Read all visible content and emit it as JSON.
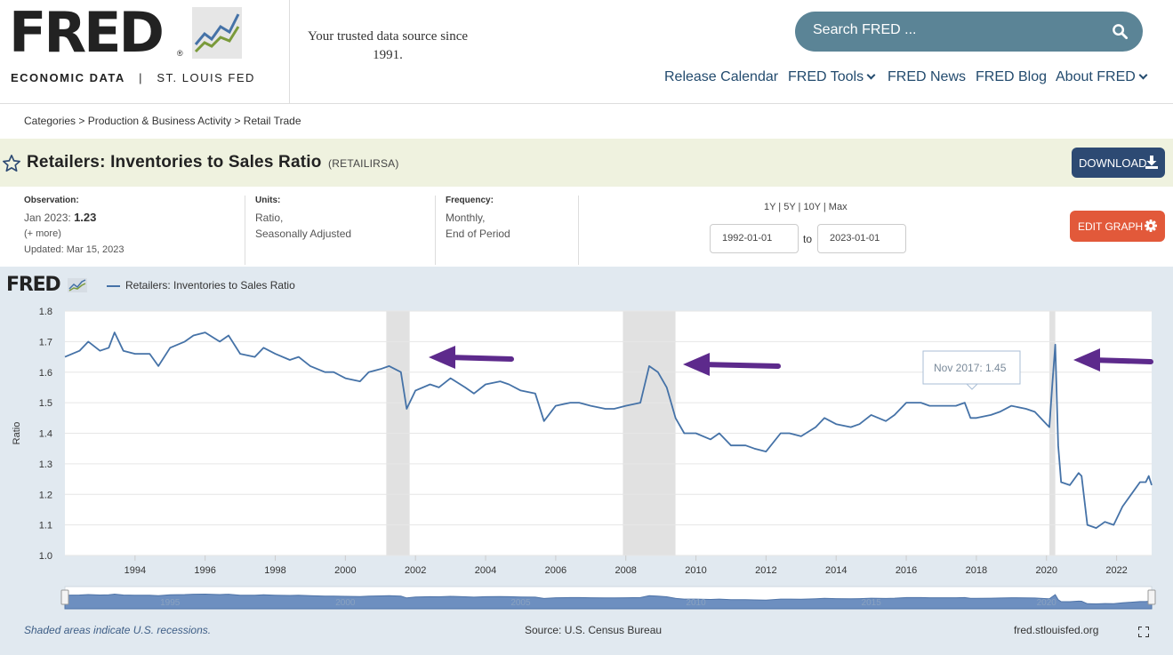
{
  "header": {
    "logo_text": "FRED",
    "logo_reg": "®",
    "logo_sub_bold": "ECONOMIC DATA",
    "logo_sub_sep": "|",
    "logo_sub": "ST. LOUIS FED",
    "tagline": "Your trusted data source since 1991.",
    "search_placeholder": "Search FRED ...",
    "nav": [
      "Release Calendar",
      "FRED Tools",
      "FRED News",
      "FRED Blog",
      "About FRED"
    ]
  },
  "breadcrumb": "Categories > Production & Business Activity > Retail Trade",
  "series": {
    "title": "Retailers: Inventories to Sales Ratio",
    "id": "(RETAILIRSA)",
    "download_label": "DOWNLOAD"
  },
  "meta": {
    "observation_label": "Observation:",
    "observation_date": "Jan 2023:",
    "observation_value": "1.23",
    "more": "(+ more)",
    "updated": "Updated: Mar 15, 2023",
    "units_label": "Units:",
    "units_1": "Ratio,",
    "units_2": "Seasonally Adjusted",
    "frequency_label": "Frequency:",
    "frequency_1": "Monthly,",
    "frequency_2": "End of Period",
    "range_links": "1Y | 5Y | 10Y | Max",
    "date_from": "1992-01-01",
    "date_to_label": "to",
    "date_to": "2023-01-01",
    "edit_label": "EDIT GRAPH"
  },
  "graph": {
    "logo": "FRED",
    "legend": "Retailers: Inventories to Sales Ratio",
    "tooltip_label": "Nov 2017:",
    "tooltip_value": "1.45",
    "footnote_recessions": "Shaded areas indicate U.S. recessions.",
    "source": "Source: U.S. Census Bureau",
    "site": "fred.stlouisfed.org"
  },
  "colors": {
    "line": "#4572a7",
    "recession": "#e1e1e1",
    "arrow": "#5d2a8c",
    "download_button": "#2d4a73",
    "edit_button": "#e2593a",
    "search_bg": "#5b8496"
  },
  "chart_data": {
    "type": "line",
    "title": "",
    "xlabel": "",
    "ylabel": "Ratio",
    "ylim": [
      1.0,
      1.8
    ],
    "xlim": [
      "1992-01",
      "2023-01"
    ],
    "y_ticks": [
      "1.0",
      "1.1",
      "1.2",
      "1.3",
      "1.4",
      "1.5",
      "1.6",
      "1.7",
      "1.8"
    ],
    "x_ticks": [
      "1994",
      "1996",
      "1998",
      "2000",
      "2002",
      "2004",
      "2006",
      "2008",
      "2010",
      "2012",
      "2014",
      "2016",
      "2018",
      "2020",
      "2022"
    ],
    "navigator_labels": [
      "1995",
      "2000",
      "2005",
      "2010",
      "2015",
      "2020"
    ],
    "recessions": [
      [
        "2001-03",
        "2001-11"
      ],
      [
        "2007-12",
        "2009-06"
      ],
      [
        "2020-02",
        "2020-04"
      ]
    ],
    "series": [
      {
        "name": "Retailers: Inventories to Sales Ratio",
        "points": [
          [
            "1992-01",
            1.65
          ],
          [
            "1992-06",
            1.67
          ],
          [
            "1992-09",
            1.7
          ],
          [
            "1993-01",
            1.67
          ],
          [
            "1993-04",
            1.68
          ],
          [
            "1993-06",
            1.73
          ],
          [
            "1993-09",
            1.67
          ],
          [
            "1994-01",
            1.66
          ],
          [
            "1994-06",
            1.66
          ],
          [
            "1994-09",
            1.62
          ],
          [
            "1995-01",
            1.68
          ],
          [
            "1995-06",
            1.7
          ],
          [
            "1995-09",
            1.72
          ],
          [
            "1996-01",
            1.73
          ],
          [
            "1996-06",
            1.7
          ],
          [
            "1996-09",
            1.72
          ],
          [
            "1997-01",
            1.66
          ],
          [
            "1997-06",
            1.65
          ],
          [
            "1997-09",
            1.68
          ],
          [
            "1998-01",
            1.66
          ],
          [
            "1998-06",
            1.64
          ],
          [
            "1998-09",
            1.65
          ],
          [
            "1999-01",
            1.62
          ],
          [
            "1999-06",
            1.6
          ],
          [
            "1999-09",
            1.6
          ],
          [
            "2000-01",
            1.58
          ],
          [
            "2000-06",
            1.57
          ],
          [
            "2000-09",
            1.6
          ],
          [
            "2001-01",
            1.61
          ],
          [
            "2001-04",
            1.62
          ],
          [
            "2001-08",
            1.6
          ],
          [
            "2001-10",
            1.48
          ],
          [
            "2002-01",
            1.54
          ],
          [
            "2002-06",
            1.56
          ],
          [
            "2002-09",
            1.55
          ],
          [
            "2003-01",
            1.58
          ],
          [
            "2003-06",
            1.55
          ],
          [
            "2003-09",
            1.53
          ],
          [
            "2004-01",
            1.56
          ],
          [
            "2004-06",
            1.57
          ],
          [
            "2004-09",
            1.56
          ],
          [
            "2005-01",
            1.54
          ],
          [
            "2005-06",
            1.53
          ],
          [
            "2005-09",
            1.44
          ],
          [
            "2006-01",
            1.49
          ],
          [
            "2006-06",
            1.5
          ],
          [
            "2006-09",
            1.5
          ],
          [
            "2007-01",
            1.49
          ],
          [
            "2007-06",
            1.48
          ],
          [
            "2007-09",
            1.48
          ],
          [
            "2008-01",
            1.49
          ],
          [
            "2008-06",
            1.5
          ],
          [
            "2008-09",
            1.62
          ],
          [
            "2008-12",
            1.6
          ],
          [
            "2009-03",
            1.55
          ],
          [
            "2009-06",
            1.45
          ],
          [
            "2009-09",
            1.4
          ],
          [
            "2010-01",
            1.4
          ],
          [
            "2010-06",
            1.38
          ],
          [
            "2010-09",
            1.4
          ],
          [
            "2011-01",
            1.36
          ],
          [
            "2011-06",
            1.36
          ],
          [
            "2011-09",
            1.35
          ],
          [
            "2012-01",
            1.34
          ],
          [
            "2012-06",
            1.4
          ],
          [
            "2012-09",
            1.4
          ],
          [
            "2013-01",
            1.39
          ],
          [
            "2013-06",
            1.42
          ],
          [
            "2013-09",
            1.45
          ],
          [
            "2014-01",
            1.43
          ],
          [
            "2014-06",
            1.42
          ],
          [
            "2014-09",
            1.43
          ],
          [
            "2015-01",
            1.46
          ],
          [
            "2015-06",
            1.44
          ],
          [
            "2015-09",
            1.46
          ],
          [
            "2016-01",
            1.5
          ],
          [
            "2016-06",
            1.5
          ],
          [
            "2016-09",
            1.49
          ],
          [
            "2017-01",
            1.49
          ],
          [
            "2017-06",
            1.49
          ],
          [
            "2017-09",
            1.5
          ],
          [
            "2017-11",
            1.45
          ],
          [
            "2018-01",
            1.45
          ],
          [
            "2018-06",
            1.46
          ],
          [
            "2018-09",
            1.47
          ],
          [
            "2019-01",
            1.49
          ],
          [
            "2019-06",
            1.48
          ],
          [
            "2019-09",
            1.47
          ],
          [
            "2020-01",
            1.43
          ],
          [
            "2020-02",
            1.42
          ],
          [
            "2020-03",
            1.56
          ],
          [
            "2020-04",
            1.69
          ],
          [
            "2020-05",
            1.36
          ],
          [
            "2020-06",
            1.24
          ],
          [
            "2020-09",
            1.23
          ],
          [
            "2020-12",
            1.27
          ],
          [
            "2021-01",
            1.26
          ],
          [
            "2021-03",
            1.1
          ],
          [
            "2021-06",
            1.09
          ],
          [
            "2021-09",
            1.11
          ],
          [
            "2021-12",
            1.1
          ],
          [
            "2022-03",
            1.16
          ],
          [
            "2022-06",
            1.2
          ],
          [
            "2022-09",
            1.24
          ],
          [
            "2022-11",
            1.24
          ],
          [
            "2022-12",
            1.26
          ],
          [
            "2023-01",
            1.23
          ]
        ]
      }
    ]
  }
}
